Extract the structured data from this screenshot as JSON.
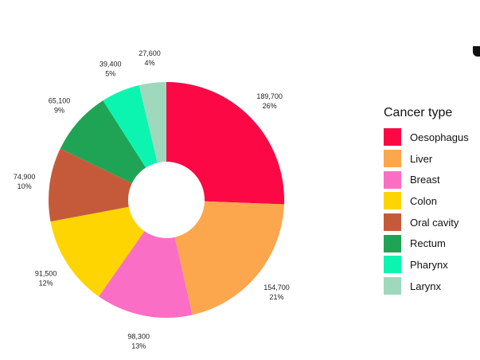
{
  "chart_data": {
    "type": "pie",
    "donut": true,
    "legend_title": "Cancer type",
    "legend_position": "right",
    "slices": [
      {
        "name": "Oesophagus",
        "value": 189700,
        "value_label": "189,700",
        "percent_label": "26%",
        "color": "#fb0845"
      },
      {
        "name": "Liver",
        "value": 154700,
        "value_label": "154,700",
        "percent_label": "21%",
        "color": "#fca74d"
      },
      {
        "name": "Breast",
        "value": 98300,
        "value_label": "98,300",
        "percent_label": "13%",
        "color": "#fb6ec5"
      },
      {
        "name": "Colon",
        "value": 91500,
        "value_label": "91,500",
        "percent_label": "12%",
        "color": "#fed500"
      },
      {
        "name": "Oral cavity",
        "value": 74900,
        "value_label": "74,900",
        "percent_label": "10%",
        "color": "#c55a3a"
      },
      {
        "name": "Rectum",
        "value": 65100,
        "value_label": "65,100",
        "percent_label": "9%",
        "color": "#1fa455"
      },
      {
        "name": "Pharynx",
        "value": 39400,
        "value_label": "39,400",
        "percent_label": "5%",
        "color": "#0cf5b0"
      },
      {
        "name": "Larynx",
        "value": 27600,
        "value_label": "27,600",
        "percent_label": "4%",
        "color": "#9ed9bd"
      }
    ]
  }
}
